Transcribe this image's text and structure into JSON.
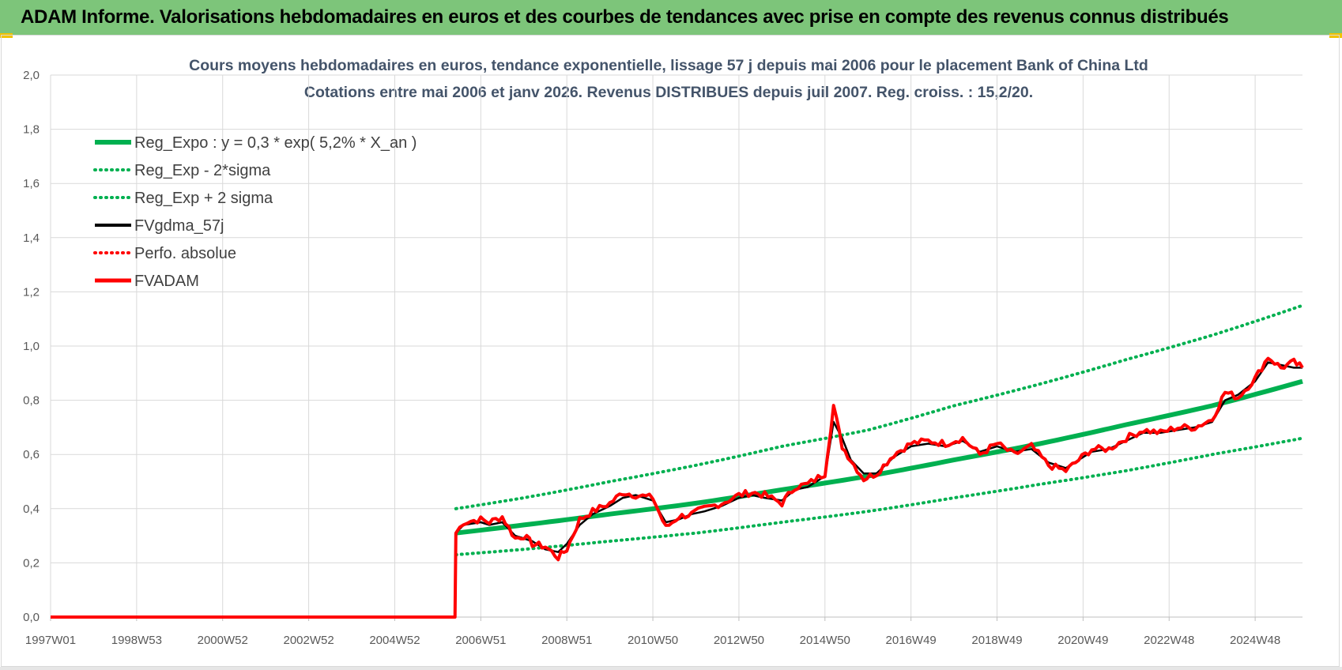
{
  "header": {
    "title": "ADAM Informe. Valorisations hebdomadaires en euros et des courbes de tendances avec prise en compte des revenus connus distribués"
  },
  "colors": {
    "banner": "#7dc57a",
    "trend": "#00b050",
    "gdma": "#000000",
    "adam": "#ff0000",
    "perfo": "#ff0000",
    "grid": "#d9d9d9",
    "title_text": "#44546a"
  },
  "chart_data": {
    "type": "line",
    "title": "Cours moyens hebdomadaires en euros, tendance exponentielle, lissage 57 j depuis mai 2006 pour le placement Bank of China Ltd",
    "subtitle": "Cotations entre mai 2006 et janv 2026. Revenus DISTRIBUES depuis juil 2007. Reg. croiss. : 15,2/20.",
    "xlabel": "",
    "ylabel": "",
    "ylim": [
      0,
      2.0
    ],
    "xlim": [
      1997.0,
      2026.1
    ],
    "grid": true,
    "legend_position": "top-left",
    "y_ticks": [
      "0,0",
      "0,2",
      "0,4",
      "0,6",
      "0,8",
      "1,0",
      "1,2",
      "1,4",
      "1,6",
      "1,8",
      "2,0"
    ],
    "x_ticks": [
      {
        "label": "1997W01",
        "x": 1997.0
      },
      {
        "label": "1998W53",
        "x": 1999.0
      },
      {
        "label": "2000W52",
        "x": 2001.0
      },
      {
        "label": "2002W52",
        "x": 2003.0
      },
      {
        "label": "2004W52",
        "x": 2005.0
      },
      {
        "label": "2006W51",
        "x": 2007.0
      },
      {
        "label": "2008W51",
        "x": 2009.0
      },
      {
        "label": "2010W50",
        "x": 2011.0
      },
      {
        "label": "2012W50",
        "x": 2013.0
      },
      {
        "label": "2014W50",
        "x": 2015.0
      },
      {
        "label": "2016W49",
        "x": 2017.0
      },
      {
        "label": "2018W49",
        "x": 2019.0
      },
      {
        "label": "2020W49",
        "x": 2021.0
      },
      {
        "label": "2022W48",
        "x": 2023.0
      },
      {
        "label": "2024W48",
        "x": 2025.0
      }
    ],
    "series": [
      {
        "name": "Reg_Expo : y = 0,3 * exp( 5,2% *  X_an )",
        "style": "solid-thick",
        "color": "#00b050",
        "x": [
          2006.42,
          2008.0,
          2010.0,
          2012.0,
          2014.0,
          2016.0,
          2018.0,
          2020.0,
          2022.0,
          2024.0,
          2026.1
        ],
        "y": [
          0.31,
          0.34,
          0.38,
          0.42,
          0.47,
          0.52,
          0.58,
          0.64,
          0.71,
          0.78,
          0.87
        ]
      },
      {
        "name": "Reg_Exp - 2*sigma",
        "style": "dotted",
        "color": "#00b050",
        "x": [
          2006.42,
          2008.0,
          2010.0,
          2012.0,
          2014.0,
          2016.0,
          2018.0,
          2020.0,
          2022.0,
          2024.0,
          2026.1
        ],
        "y": [
          0.23,
          0.25,
          0.28,
          0.31,
          0.35,
          0.39,
          0.44,
          0.49,
          0.54,
          0.6,
          0.66
        ]
      },
      {
        "name": "Reg_Exp + 2 sigma",
        "style": "dotted",
        "color": "#00b050",
        "x": [
          2006.42,
          2008.0,
          2010.0,
          2012.0,
          2014.0,
          2016.0,
          2018.0,
          2020.0,
          2022.0,
          2024.0,
          2026.1
        ],
        "y": [
          0.4,
          0.44,
          0.5,
          0.56,
          0.63,
          0.69,
          0.78,
          0.86,
          0.95,
          1.04,
          1.15
        ]
      },
      {
        "name": "FVgdma_57j",
        "style": "solid",
        "color": "#000000",
        "x": [
          1997.0,
          2006.4,
          2006.42,
          2006.6,
          2007.0,
          2007.2,
          2007.5,
          2007.8,
          2008.0,
          2008.2,
          2008.5,
          2008.8,
          2009.0,
          2009.3,
          2009.6,
          2010.0,
          2010.3,
          2010.6,
          2011.0,
          2011.3,
          2011.6,
          2011.9,
          2012.2,
          2012.6,
          2013.0,
          2013.3,
          2013.6,
          2014.0,
          2014.3,
          2014.6,
          2015.0,
          2015.2,
          2015.4,
          2015.6,
          2015.9,
          2016.2,
          2016.6,
          2017.0,
          2017.4,
          2017.8,
          2018.2,
          2018.6,
          2019.0,
          2019.4,
          2019.8,
          2020.2,
          2020.6,
          2020.9,
          2021.2,
          2021.6,
          2022.0,
          2022.4,
          2022.8,
          2023.2,
          2023.6,
          2024.0,
          2024.3,
          2024.6,
          2025.0,
          2025.3,
          2025.6,
          2025.9,
          2026.1
        ],
        "y": [
          0.0,
          0.0,
          0.31,
          0.34,
          0.35,
          0.34,
          0.35,
          0.3,
          0.29,
          0.28,
          0.25,
          0.24,
          0.27,
          0.34,
          0.38,
          0.41,
          0.44,
          0.45,
          0.43,
          0.35,
          0.36,
          0.38,
          0.39,
          0.41,
          0.44,
          0.45,
          0.44,
          0.43,
          0.47,
          0.48,
          0.52,
          0.72,
          0.66,
          0.58,
          0.53,
          0.53,
          0.59,
          0.63,
          0.64,
          0.63,
          0.65,
          0.61,
          0.63,
          0.61,
          0.62,
          0.57,
          0.55,
          0.58,
          0.61,
          0.62,
          0.65,
          0.68,
          0.68,
          0.69,
          0.7,
          0.72,
          0.8,
          0.82,
          0.87,
          0.94,
          0.93,
          0.92,
          0.92
        ]
      },
      {
        "name": "Perfo. absolue",
        "style": "dotted",
        "color": "#ff0000",
        "x": [],
        "y": []
      },
      {
        "name": "FVADAM",
        "style": "solid-thick-noisy",
        "color": "#ff0000",
        "x": [
          1997.0,
          2006.4,
          2006.42,
          2006.6,
          2007.0,
          2007.2,
          2007.5,
          2007.8,
          2008.0,
          2008.2,
          2008.5,
          2008.8,
          2009.0,
          2009.3,
          2009.6,
          2010.0,
          2010.3,
          2010.6,
          2011.0,
          2011.3,
          2011.6,
          2011.9,
          2012.2,
          2012.6,
          2013.0,
          2013.3,
          2013.6,
          2014.0,
          2014.3,
          2014.6,
          2015.0,
          2015.2,
          2015.4,
          2015.6,
          2015.9,
          2016.2,
          2016.6,
          2017.0,
          2017.4,
          2017.8,
          2018.2,
          2018.6,
          2019.0,
          2019.4,
          2019.8,
          2020.2,
          2020.6,
          2020.9,
          2021.2,
          2021.6,
          2022.0,
          2022.4,
          2022.8,
          2023.2,
          2023.6,
          2024.0,
          2024.3,
          2024.6,
          2025.0,
          2025.3,
          2025.6,
          2025.9,
          2026.1
        ],
        "y": [
          0.0,
          0.0,
          0.31,
          0.35,
          0.36,
          0.35,
          0.37,
          0.29,
          0.3,
          0.27,
          0.26,
          0.22,
          0.25,
          0.36,
          0.39,
          0.42,
          0.46,
          0.45,
          0.44,
          0.33,
          0.37,
          0.38,
          0.4,
          0.42,
          0.45,
          0.46,
          0.45,
          0.42,
          0.48,
          0.49,
          0.53,
          0.78,
          0.63,
          0.58,
          0.51,
          0.53,
          0.6,
          0.64,
          0.65,
          0.64,
          0.66,
          0.6,
          0.64,
          0.6,
          0.63,
          0.56,
          0.54,
          0.58,
          0.62,
          0.62,
          0.66,
          0.69,
          0.68,
          0.7,
          0.7,
          0.73,
          0.83,
          0.81,
          0.88,
          0.96,
          0.92,
          0.94,
          0.92
        ]
      }
    ]
  }
}
